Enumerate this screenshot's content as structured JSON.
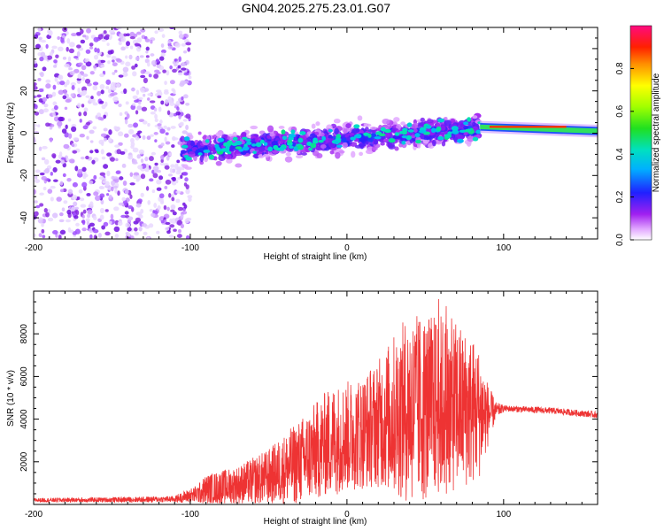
{
  "title": "GN04.2025.275.23.01.G07",
  "colors": {
    "snr_line": "#ee3333",
    "axis": "#000000",
    "background": "#ffffff"
  },
  "chart_data": [
    {
      "type": "heatmap",
      "title": "GN04.2025.275.23.01.G07",
      "xlabel": "Height of straight line (km)",
      "ylabel": "Frequency (Hz)",
      "xlim": [
        -200,
        160
      ],
      "ylim": [
        -50,
        50
      ],
      "x_ticks": [
        -200,
        -100,
        0,
        100
      ],
      "x_tick_labels": [
        "-200",
        "-100",
        "0",
        "100"
      ],
      "y_ticks": [
        -40,
        -20,
        0,
        20,
        40
      ],
      "y_tick_labels": [
        "-40",
        "-20",
        "0",
        "20",
        "40"
      ],
      "colorbar": {
        "label": "Normalized spectral amplitude",
        "range": [
          0,
          1
        ],
        "ticks": [
          0.0,
          0.2,
          0.4,
          0.6,
          0.8
        ],
        "tick_labels": [
          "0.0",
          "0.2",
          "0.4",
          "0.6",
          "0.8"
        ],
        "colormap": "gist_rainbow_r"
      },
      "regions": [
        {
          "name": "noise",
          "x_range": [
            -200,
            -100
          ],
          "f_range": [
            -50,
            50
          ],
          "amplitude": 0.1
        },
        {
          "name": "scintillation",
          "x_range": [
            -105,
            85
          ],
          "f_center": [
            -8,
            2
          ],
          "f_spread": 14,
          "amplitude": 0.2
        },
        {
          "name": "carrier",
          "x_range": [
            85,
            160
          ],
          "f_center": [
            3,
            1
          ],
          "f_spread": 2,
          "amplitude": 0.95
        }
      ]
    },
    {
      "type": "line",
      "title": "",
      "xlabel": "Height of straight line (km)",
      "ylabel": "SNR (10 * v/v)",
      "xlim": [
        -200,
        160
      ],
      "ylim": [
        0,
        10000
      ],
      "x_ticks": [
        -200,
        -100,
        0,
        100
      ],
      "x_tick_labels": [
        "-200",
        "-100",
        "0",
        "100"
      ],
      "y_ticks": [
        2000,
        4000,
        6000,
        8000
      ],
      "y_tick_labels": [
        "2000",
        "4000",
        "6000",
        "8000"
      ],
      "series": [
        {
          "name": "SNR",
          "color": "#ee3333",
          "x": [
            -200,
            -150,
            -110,
            -95,
            -90,
            -70,
            -50,
            -30,
            -10,
            0,
            10,
            20,
            30,
            40,
            50,
            60,
            70,
            80,
            85,
            90,
            95,
            100,
            130,
            160
          ],
          "mean": [
            200,
            220,
            250,
            500,
            700,
            900,
            1300,
            2000,
            3000,
            3200,
            3400,
            3800,
            4200,
            4500,
            4500,
            4700,
            4600,
            4400,
            4300,
            4200,
            4400,
            4500,
            4400,
            4200
          ],
          "spread": [
            100,
            120,
            150,
            450,
            700,
            900,
            1300,
            2000,
            2600,
            2600,
            2700,
            3000,
            3800,
            4500,
            4400,
            4300,
            4000,
            3500,
            3000,
            1500,
            400,
            150,
            150,
            150
          ],
          "peak_max": 9700
        }
      ]
    }
  ]
}
